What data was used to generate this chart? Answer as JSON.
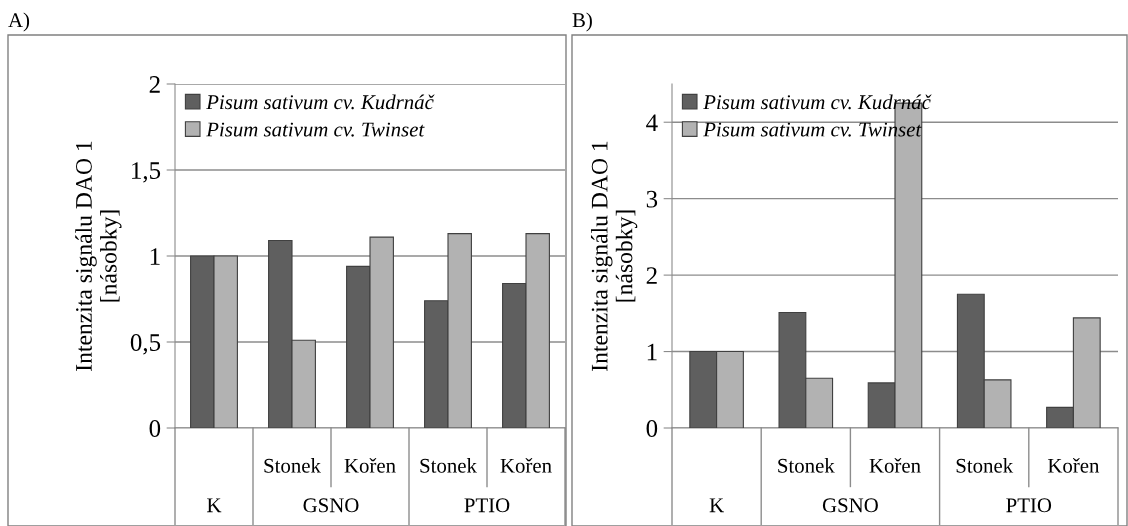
{
  "chart_data": [
    {
      "type": "bar",
      "title": "A)",
      "ylabel": "Intenzita signálu DAO 1\n[násobky]",
      "categories": [
        null,
        "Stonek",
        "Kořen",
        "Stonek",
        "Kořen"
      ],
      "annotations": [
        "K",
        "GSNO",
        "PTIO"
      ],
      "series": [
        {
          "name": "Pisum sativum cv. Kudrnáč",
          "color": "#5f5f5f",
          "values": [
            1,
            1.09,
            0.94,
            0.74,
            0.84
          ]
        },
        {
          "name": "Pisum sativum cv. Twinset",
          "color": "#b2b2b2",
          "values": [
            1,
            0.51,
            1.11,
            1.13,
            1.13
          ]
        }
      ],
      "ylim": [
        0,
        2
      ],
      "yticks": [
        0,
        {
          "value": 0.5,
          "label": "0,5"
        },
        1,
        {
          "value": 1.5,
          "label": "1,5"
        },
        2
      ],
      "grid": "y",
      "legend": "top left"
    },
    {
      "type": "bar",
      "title": "B)",
      "ylabel": "Intenzita signálu DAO 1\n[násobky]",
      "categories": [
        null,
        "Stonek",
        "Kořen",
        "Stonek",
        "Kořen"
      ],
      "annotations": [
        "K",
        "GSNO",
        "PTIO"
      ],
      "series": [
        {
          "name": "Pisum sativum cv. Kudrnáč",
          "color": "#5f5f5f",
          "values": [
            1,
            1.51,
            0.59,
            1.75,
            0.27
          ]
        },
        {
          "name": "Pisum sativum cv. Twinset",
          "color": "#b2b2b2",
          "values": [
            1,
            0.65,
            4.25,
            0.63,
            1.44
          ]
        }
      ],
      "ylim": [
        0,
        4.5
      ],
      "yticks": [
        0,
        1,
        2,
        3,
        4
      ],
      "grid": "y",
      "legend": "top left"
    }
  ]
}
